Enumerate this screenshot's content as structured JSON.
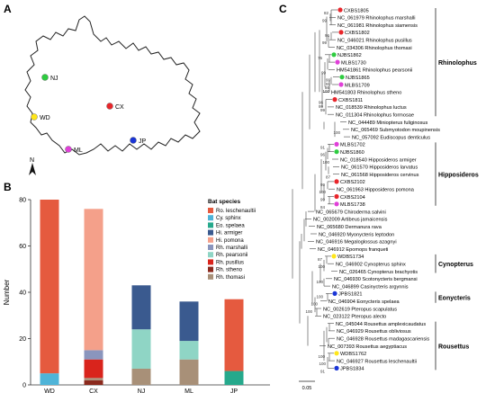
{
  "panels": {
    "a": "A",
    "b": "B",
    "c": "C"
  },
  "map": {
    "north_label": "N",
    "sites": [
      {
        "code": "NJ",
        "color": "#2ecc40"
      },
      {
        "code": "CX",
        "color": "#e8262b"
      },
      {
        "code": "WD",
        "color": "#ffe61a"
      },
      {
        "code": "ML",
        "color": "#e040d8"
      },
      {
        "code": "JP",
        "color": "#1a35d6"
      }
    ]
  },
  "chart_data": {
    "type": "bar",
    "categories": [
      "WD",
      "CX",
      "NJ",
      "ML",
      "JP"
    ],
    "ylabel": "Number",
    "ylim": [
      0,
      80
    ],
    "yticks": [
      0,
      20,
      40,
      60,
      80
    ],
    "legend_title": "Bat species",
    "legend_position": "right",
    "series": [
      {
        "name": "Ro. leschenaultii",
        "color": "#e55a3f",
        "values": [
          75,
          0,
          0,
          0,
          31
        ]
      },
      {
        "name": "Cy. sphinx",
        "color": "#4fb4d8",
        "values": [
          5,
          0,
          0,
          0,
          0
        ]
      },
      {
        "name": "Eo. spelaea",
        "color": "#26a98c",
        "values": [
          0,
          0,
          0,
          0,
          6
        ]
      },
      {
        "name": "Hi. armiger",
        "color": "#3a5a8f",
        "values": [
          0,
          0,
          19,
          17,
          0
        ]
      },
      {
        "name": "Hi. pomona",
        "color": "#f4a08a",
        "values": [
          0,
          61,
          0,
          0,
          0
        ]
      },
      {
        "name": "Rh. marshalli",
        "color": "#8a95bd",
        "values": [
          0,
          4,
          0,
          0,
          0
        ]
      },
      {
        "name": "Rh. pearsonii",
        "color": "#8fd5c5",
        "values": [
          0,
          0,
          17,
          8,
          0
        ]
      },
      {
        "name": "Rh. pusillus",
        "color": "#d9241c",
        "values": [
          0,
          8,
          0,
          0,
          0
        ]
      },
      {
        "name": "Rh. stheno",
        "color": "#8b2a1e",
        "values": [
          0,
          2,
          0,
          0,
          0
        ]
      },
      {
        "name": "Rh. thomasi",
        "color": "#a89078",
        "values": [
          0,
          1,
          7,
          11,
          0
        ]
      }
    ],
    "stack_order": [
      "Rh. stheno",
      "Rh. thomasi",
      "Rh. pusillus",
      "Cy. sphinx",
      "Eo. spelaea",
      "Rh. pearsonii",
      "Rh. marshalli",
      "Hi. armiger",
      "Hi. pomona",
      "Ro. leschenaultii"
    ]
  },
  "tree": {
    "scale_label": "0.05",
    "leaves": [
      {
        "label": "CXBS1805",
        "dot": "#e8262b"
      },
      {
        "label": "NC_061979 Rhinolophus marshalli"
      },
      {
        "label": "NC_061981 Rhinolophus siamensis"
      },
      {
        "label": "CXBS1802",
        "dot": "#e8262b"
      },
      {
        "label": "NC_046021 Rhinolophus pusillus"
      },
      {
        "label": "NC_034306 Rhinolophus thomasi"
      },
      {
        "label": "NJBS1862",
        "dot": "#2ecc40"
      },
      {
        "label": "MLBS1730",
        "dot": "#e040d8"
      },
      {
        "label": "HM541861 Rhinolophus pearsonii"
      },
      {
        "label": "NJBS1865",
        "dot": "#2ecc40"
      },
      {
        "label": "MLBS1709",
        "dot": "#e040d8"
      },
      {
        "label": "HM541803 Rhinolophus stheno"
      },
      {
        "label": "CXBS1811",
        "dot": "#e8262b"
      },
      {
        "label": "NC_018539 Rhinolophus luctus"
      },
      {
        "label": "NC_011304 Rhinolophus formosae"
      },
      {
        "label": "NC_044489 Miniopterus fuliginosus"
      },
      {
        "label": "NC_065469 Submyotodon moupinensis"
      },
      {
        "label": "NC_057092 Eudiscopus denticulus"
      },
      {
        "label": "MLBS1702",
        "dot": "#e040d8"
      },
      {
        "label": "NJBS1860",
        "dot": "#2ecc40"
      },
      {
        "label": "NC_018540 Hipposideros armiger"
      },
      {
        "label": "NC_061570 Hipposideros larvatus"
      },
      {
        "label": "NC_061568 Hipposideros cervinus"
      },
      {
        "label": "CXBS2102",
        "dot": "#e8262b"
      },
      {
        "label": "NC_061963 Hipposideros pomona"
      },
      {
        "label": "CXBS2104",
        "dot": "#e8262b"
      },
      {
        "label": "MLBS1738",
        "dot": "#e040d8"
      },
      {
        "label": "NC_065679 Chiroderma salvini"
      },
      {
        "label": "NC_002009 Artibeus jamaicensis"
      },
      {
        "label": "NC_065680 Dermanura rava"
      },
      {
        "label": "NC_046920 Myonycteris leptodon"
      },
      {
        "label": "NC_046916 Megaloglossus azagnyi"
      },
      {
        "label": "NC_046912 Epomops franqueti"
      },
      {
        "label": "WDBS1734",
        "dot": "#ffe61a"
      },
      {
        "label": "NC_046902 Cynopterus sphinx"
      },
      {
        "label": "NC_026465 Cynopterus brachyotis"
      },
      {
        "label": "NC_046930 Scotonycteris bergmansi"
      },
      {
        "label": "NC_046899 Casinycteris argynnis"
      },
      {
        "label": "JPBS1821",
        "dot": "#1a35d6"
      },
      {
        "label": "NC_046904 Eonycteris spelaea"
      },
      {
        "label": "NC_002619 Pteropus scapulatus"
      },
      {
        "label": "NC_023122 Pteropus alecto"
      },
      {
        "label": "NC_045044 Rousettus amplexicaudatus"
      },
      {
        "label": "NC_046929 Rousettus obliviosus"
      },
      {
        "label": "NC_046928 Rousettus madagascariensis"
      },
      {
        "label": "NC_007393 Rousettus aegyptiacus"
      },
      {
        "label": "WDBS1762",
        "dot": "#ffe61a"
      },
      {
        "label": "NC_046927 Rousettus leschenaultii"
      },
      {
        "label": "JPBS1834",
        "dot": "#1a35d6"
      }
    ],
    "clades": [
      {
        "label": "Rhinolophus",
        "from": 0,
        "to": 14
      },
      {
        "label": "Hipposideros",
        "from": 18,
        "to": 26
      },
      {
        "label": "Cynopterus",
        "from": 33,
        "to": 35
      },
      {
        "label": "Eonycteris",
        "from": 38,
        "to": 39
      },
      {
        "label": "Rousettus",
        "from": 42,
        "to": 48
      }
    ],
    "bootstrap": [
      {
        "leaf": 0,
        "value": "82"
      },
      {
        "leaf": 1,
        "value": "99"
      },
      {
        "leaf": 3,
        "value": "96"
      },
      {
        "leaf": 4,
        "value": "99"
      },
      {
        "leaf": 6,
        "value": "75"
      },
      {
        "leaf": 8,
        "value": "99"
      },
      {
        "leaf": 9,
        "value": "99"
      },
      {
        "leaf": 10,
        "value": "86"
      },
      {
        "leaf": 12,
        "value": "96"
      },
      {
        "leaf": 12.5,
        "value": "99"
      },
      {
        "leaf": 13,
        "value": "99"
      },
      {
        "leaf": 10.5,
        "value": "100"
      },
      {
        "leaf": 9.5,
        "value": "91"
      },
      {
        "leaf": 16,
        "value": "100"
      },
      {
        "leaf": 18,
        "value": "91"
      },
      {
        "leaf": 19,
        "value": "96"
      },
      {
        "leaf": 20,
        "value": "100"
      },
      {
        "leaf": 23,
        "value": "99"
      },
      {
        "leaf": 24,
        "value": "100"
      },
      {
        "leaf": 25,
        "value": "99"
      },
      {
        "leaf": 22,
        "value": "87"
      },
      {
        "leaf": 26,
        "value": "84"
      },
      {
        "leaf": 33,
        "value": "87"
      },
      {
        "leaf": 34,
        "value": "100"
      },
      {
        "leaf": 36,
        "value": "100"
      },
      {
        "leaf": 38,
        "value": "100"
      },
      {
        "leaf": 39,
        "value": "100"
      },
      {
        "leaf": 40,
        "value": "100"
      },
      {
        "leaf": 46,
        "value": "100"
      },
      {
        "leaf": 47,
        "value": "100"
      },
      {
        "leaf": 48,
        "value": "91"
      }
    ]
  }
}
